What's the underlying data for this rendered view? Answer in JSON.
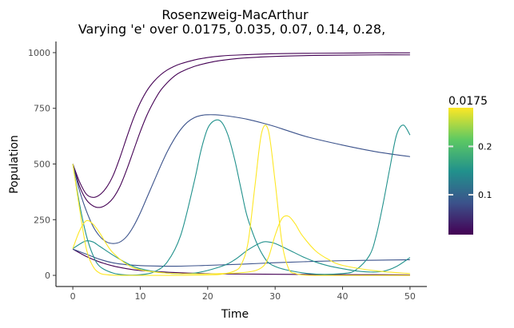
{
  "chart_data": {
    "type": "line",
    "title": "Rosenzweig-MacArthur",
    "subtitle": "Varying 'e' over 0.0175, 0.035, 0.07, 0.14, 0.28,",
    "xlabel": "Time",
    "ylabel": "Population",
    "xlim": [
      -2.5,
      52.5
    ],
    "ylim": [
      -50,
      1050
    ],
    "x_ticks": [
      0,
      10,
      20,
      30,
      40,
      50
    ],
    "y_ticks": [
      0,
      250,
      500,
      750,
      1000
    ],
    "x_tick_labels": [
      "0",
      "10",
      "20",
      "30",
      "40",
      "50"
    ],
    "y_tick_labels": [
      "0",
      "250",
      "500",
      "750",
      "1000"
    ],
    "grid": false,
    "legend": {
      "title": "0.0175",
      "placement": "right",
      "type": "colorbar",
      "range": [
        0.0175,
        0.28
      ],
      "ticks": [
        0.1,
        0.2
      ],
      "tick_labels": [
        "0.1",
        "0.2"
      ],
      "colors": [
        "#440154",
        "#3b528b",
        "#21918c",
        "#5ec962",
        "#fde725"
      ]
    },
    "series": [
      {
        "e": 0.0175,
        "color": "#440154",
        "x": [
          0,
          1,
          2,
          3,
          4,
          5,
          6,
          7,
          8,
          9,
          10,
          11,
          12,
          13,
          14,
          15,
          16,
          18,
          20,
          22,
          25,
          30,
          35,
          40,
          45,
          50
        ],
        "y": [
          500,
          420,
          365,
          350,
          362,
          395,
          450,
          530,
          620,
          705,
          775,
          830,
          870,
          900,
          922,
          938,
          950,
          967,
          978,
          985,
          990,
          995,
          997,
          998,
          999,
          999
        ]
      },
      {
        "e": 0.0175,
        "color": "#440154",
        "x": [
          0,
          1,
          2,
          3,
          4,
          5,
          6,
          7,
          8,
          9,
          10,
          11,
          12,
          13,
          14,
          15,
          16,
          18,
          20,
          22,
          25,
          30,
          35,
          40,
          45,
          50
        ],
        "y": [
          500,
          400,
          340,
          312,
          305,
          318,
          348,
          400,
          475,
          560,
          645,
          720,
          780,
          830,
          865,
          893,
          913,
          938,
          954,
          965,
          975,
          983,
          987,
          989,
          990,
          990
        ]
      },
      {
        "e": 0.035,
        "color": "#3b528b",
        "x": [
          0,
          1,
          2,
          3,
          4,
          5,
          6,
          7,
          8,
          9,
          10,
          11,
          12,
          13,
          14,
          15,
          16,
          17,
          18,
          19,
          20,
          21,
          22,
          24,
          26,
          28,
          30,
          32,
          35,
          40,
          45,
          50
        ],
        "y": [
          500,
          380,
          290,
          220,
          175,
          150,
          143,
          150,
          175,
          220,
          280,
          350,
          420,
          490,
          555,
          610,
          655,
          688,
          708,
          718,
          721,
          721,
          719,
          711,
          700,
          685,
          668,
          648,
          620,
          585,
          555,
          533
        ]
      },
      {
        "e": 0.0175,
        "color": "#440154",
        "x": [
          0,
          2,
          4,
          6,
          8,
          10,
          15,
          20,
          25,
          30,
          35,
          40,
          45,
          50
        ],
        "y": [
          118,
          85,
          60,
          42,
          30,
          22,
          13,
          8,
          6,
          5,
          4,
          3,
          3,
          2
        ]
      },
      {
        "e": 0.035,
        "color": "#3b528b",
        "x": [
          0,
          2,
          4,
          6,
          8,
          10,
          15,
          20,
          25,
          30,
          35,
          40,
          45,
          50
        ],
        "y": [
          118,
          95,
          72,
          56,
          48,
          44,
          41,
          45,
          50,
          57,
          62,
          66,
          68,
          70
        ]
      },
      {
        "e": 0.14,
        "color": "#21918c",
        "x": [
          0,
          1,
          2,
          3,
          4,
          6,
          8,
          10,
          12,
          14,
          16,
          18,
          19,
          20,
          21,
          22,
          23,
          24,
          25,
          26,
          28,
          30,
          35,
          40,
          42,
          44,
          45,
          46,
          47,
          48,
          49,
          50
        ],
        "y": [
          500,
          320,
          180,
          90,
          40,
          10,
          2,
          3,
          15,
          60,
          180,
          420,
          560,
          660,
          695,
          690,
          630,
          520,
          380,
          250,
          100,
          40,
          8,
          8,
          25,
          90,
          180,
          320,
          480,
          630,
          675,
          630
        ]
      },
      {
        "e": 0.14,
        "color": "#21918c",
        "x": [
          0,
          1,
          2,
          3,
          4,
          6,
          8,
          10,
          14,
          18,
          22,
          24,
          26,
          28,
          29,
          30,
          32,
          34,
          36,
          38,
          40,
          42,
          44,
          46,
          48,
          50
        ],
        "y": [
          120,
          140,
          155,
          150,
          130,
          90,
          55,
          30,
          10,
          10,
          40,
          70,
          115,
          148,
          150,
          143,
          115,
          85,
          60,
          42,
          30,
          20,
          15,
          18,
          40,
          80
        ]
      },
      {
        "e": 0.28,
        "color": "#fde725",
        "x": [
          0,
          1,
          2,
          3,
          4,
          5,
          6,
          8,
          10,
          15,
          20,
          22,
          24,
          25,
          26,
          27,
          28,
          29,
          30,
          31,
          32,
          33,
          34,
          36,
          40,
          45,
          50
        ],
        "y": [
          500,
          300,
          120,
          40,
          10,
          3,
          1,
          0,
          0,
          0,
          2,
          5,
          20,
          50,
          150,
          400,
          640,
          650,
          420,
          150,
          30,
          8,
          2,
          0,
          0,
          0,
          0
        ]
      },
      {
        "e": 0.28,
        "color": "#fde725",
        "x": [
          0,
          1,
          2,
          3,
          4,
          5,
          6,
          8,
          10,
          14,
          18,
          22,
          26,
          28,
          29,
          30,
          31,
          32,
          33,
          34,
          36,
          38,
          40,
          45,
          50
        ],
        "y": [
          120,
          200,
          245,
          230,
          190,
          140,
          100,
          50,
          25,
          10,
          7,
          8,
          15,
          35,
          80,
          180,
          255,
          265,
          230,
          180,
          110,
          70,
          45,
          20,
          8
        ]
      }
    ]
  }
}
